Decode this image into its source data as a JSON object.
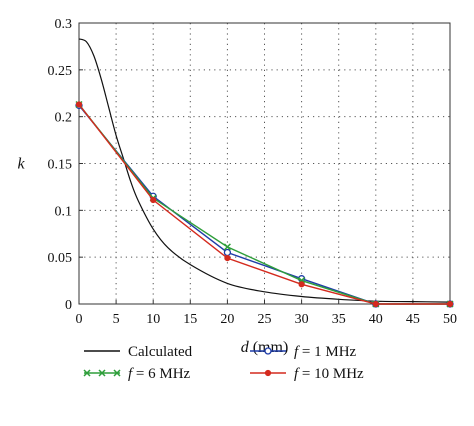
{
  "chart_data": {
    "type": "line",
    "title": "",
    "xlabel_var": "d",
    "xlabel_unit": " (mm)",
    "ylabel": "k",
    "xlim": [
      0,
      50
    ],
    "ylim": [
      0,
      0.3
    ],
    "xticks": [
      0,
      5,
      10,
      15,
      20,
      25,
      30,
      35,
      40,
      45,
      50
    ],
    "yticks": [
      0,
      0.05,
      0.1,
      0.15,
      0.2,
      0.25,
      0.3
    ],
    "xtick_labels": [
      "0",
      "5",
      "10",
      "15",
      "20",
      "25",
      "30",
      "35",
      "40",
      "45",
      "50"
    ],
    "ytick_labels": [
      "0",
      "0.05",
      "0.1",
      "0.15",
      "0.2",
      "0.25",
      "0.3"
    ],
    "grid": true,
    "legend_position": "bottom",
    "series": [
      {
        "name": "Calculated",
        "legend_prefix": "",
        "legend_value": "Calculated",
        "color": "#111111",
        "marker": "none",
        "x": [
          0,
          1,
          2,
          3,
          4,
          5,
          6,
          7,
          8,
          10,
          12,
          15,
          20,
          25,
          30,
          35,
          40,
          45,
          50
        ],
        "y": [
          0.283,
          0.28,
          0.265,
          0.24,
          0.21,
          0.18,
          0.155,
          0.13,
          0.11,
          0.08,
          0.06,
          0.042,
          0.022,
          0.013,
          0.008,
          0.005,
          0.003,
          0.0025,
          0.002
        ]
      },
      {
        "name": "f = 1 MHz",
        "legend_prefix": "f",
        "legend_value": " = 1 MHz",
        "color": "#1f3da8",
        "marker": "circle",
        "x": [
          0,
          10,
          20,
          30,
          40,
          50
        ],
        "y": [
          0.212,
          0.115,
          0.055,
          0.027,
          0.0,
          0.0
        ]
      },
      {
        "name": "f = 6 MHz",
        "legend_prefix": "f",
        "legend_value": " = 6 MHz",
        "color": "#2e9e3a",
        "marker": "x",
        "x": [
          0,
          10,
          20,
          30,
          40,
          50
        ],
        "y": [
          0.213,
          0.113,
          0.061,
          0.025,
          0.0,
          0.0
        ]
      },
      {
        "name": "f = 10 MHz",
        "legend_prefix": "f",
        "legend_value": " = 10 MHz",
        "color": "#d42a1e",
        "marker": "dot",
        "x": [
          0,
          10,
          20,
          30,
          40,
          50
        ],
        "y": [
          0.213,
          0.111,
          0.049,
          0.021,
          0.0,
          0.0
        ]
      }
    ]
  }
}
